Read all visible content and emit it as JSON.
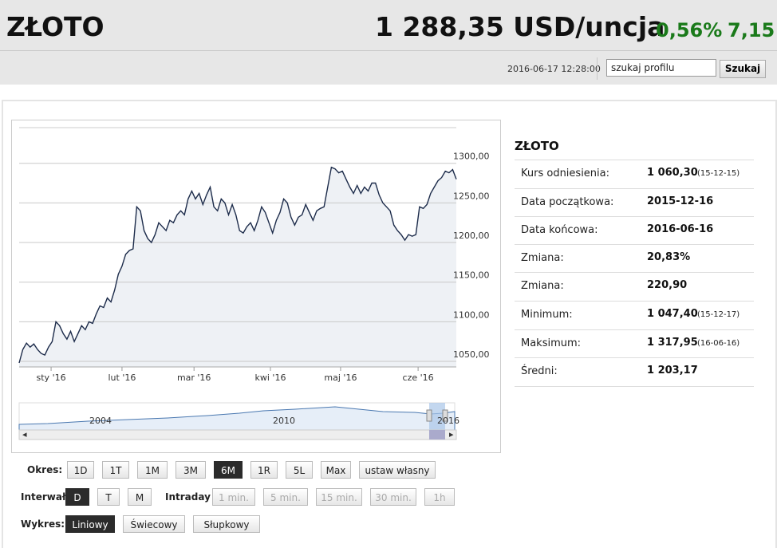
{
  "header": {
    "title": "ZŁOTO",
    "price": "1 288,35 USD/uncja",
    "change_pct": "0,56%",
    "change_abs": "7,15",
    "datetime": "2016-06-17 12:28:00",
    "search_placeholder": "szukaj profilu",
    "search_button": "Szukaj"
  },
  "chart_data": {
    "type": "line",
    "color": "#1c2b4a",
    "values": [
      1048,
      1065,
      1073,
      1068,
      1072,
      1065,
      1060,
      1058,
      1068,
      1075,
      1100,
      1095,
      1085,
      1078,
      1088,
      1075,
      1085,
      1095,
      1090,
      1100,
      1098,
      1110,
      1120,
      1118,
      1130,
      1125,
      1140,
      1160,
      1170,
      1185,
      1190,
      1192,
      1245,
      1240,
      1215,
      1205,
      1200,
      1210,
      1225,
      1220,
      1215,
      1228,
      1225,
      1235,
      1240,
      1235,
      1255,
      1265,
      1255,
      1262,
      1248,
      1260,
      1270,
      1245,
      1240,
      1255,
      1250,
      1235,
      1248,
      1235,
      1215,
      1212,
      1220,
      1225,
      1215,
      1228,
      1245,
      1238,
      1225,
      1212,
      1228,
      1238,
      1255,
      1250,
      1232,
      1222,
      1232,
      1235,
      1248,
      1238,
      1228,
      1240,
      1243,
      1245,
      1270,
      1295,
      1293,
      1288,
      1290,
      1280,
      1270,
      1262,
      1272,
      1262,
      1270,
      1265,
      1275,
      1275,
      1260,
      1250,
      1245,
      1240,
      1222,
      1215,
      1210,
      1203,
      1210,
      1208,
      1210,
      1245,
      1243,
      1248,
      1262,
      1270,
      1278,
      1282,
      1290,
      1288,
      1292,
      1280
    ],
    "xlim": [
      0,
      119
    ],
    "xticks": [
      {
        "value": 8.7,
        "label": "sty '16"
      },
      {
        "value": 28,
        "label": "lut '16"
      },
      {
        "value": 47.6,
        "label": "mar '16"
      },
      {
        "value": 68.4,
        "label": "kwi '16"
      },
      {
        "value": 87.5,
        "label": "maj '16"
      },
      {
        "value": 108.6,
        "label": "cze '16"
      }
    ],
    "ylim": [
      1043,
      1345
    ],
    "yticks": [
      {
        "value": 1050,
        "label": "1050,00"
      },
      {
        "value": 1100,
        "label": "1100,00"
      },
      {
        "value": 1150,
        "label": "1150,00"
      },
      {
        "value": 1200,
        "label": "1200,00"
      },
      {
        "value": 1250,
        "label": "1250,00"
      },
      {
        "value": 1300,
        "label": "1300,00"
      }
    ],
    "grid": true
  },
  "navigator": {
    "labels": [
      "2004",
      "2010",
      "2016"
    ]
  },
  "controls": {
    "period_label": "Okres:",
    "periods": [
      "1D",
      "1T",
      "1M",
      "3M",
      "6M",
      "1R",
      "5L",
      "Max",
      "ustaw własny"
    ],
    "period_active": 4,
    "interval_label": "Interwał",
    "intervals": [
      "D",
      "T",
      "M"
    ],
    "interval_active": 0,
    "intraday_label": "Intraday",
    "intraday": [
      "1 min.",
      "5 min.",
      "15 min.",
      "30 min.",
      "1h"
    ],
    "chart_label": "Wykres:",
    "chart_types": [
      "Liniowy",
      "Świecowy",
      "Słupkowy"
    ],
    "chart_type_active": 0
  },
  "stats": {
    "title": "ZŁOTO",
    "rows": [
      [
        "Kurs odniesienia:",
        "1 060,30",
        "(15-12-15)"
      ],
      [
        "Data początkowa:",
        "2015-12-16"
      ],
      [
        "Data końcowa:",
        "2016-06-16"
      ],
      [
        "Zmiana:",
        "20,83%"
      ],
      [
        "Zmiana:",
        "220,90"
      ],
      [
        "Minimum:",
        "1 047,40",
        "(15-12-17)"
      ],
      [
        "Maksimum:",
        "1 317,95",
        "(16-06-16)"
      ],
      [
        "Średni:",
        "1 203,17"
      ]
    ]
  }
}
